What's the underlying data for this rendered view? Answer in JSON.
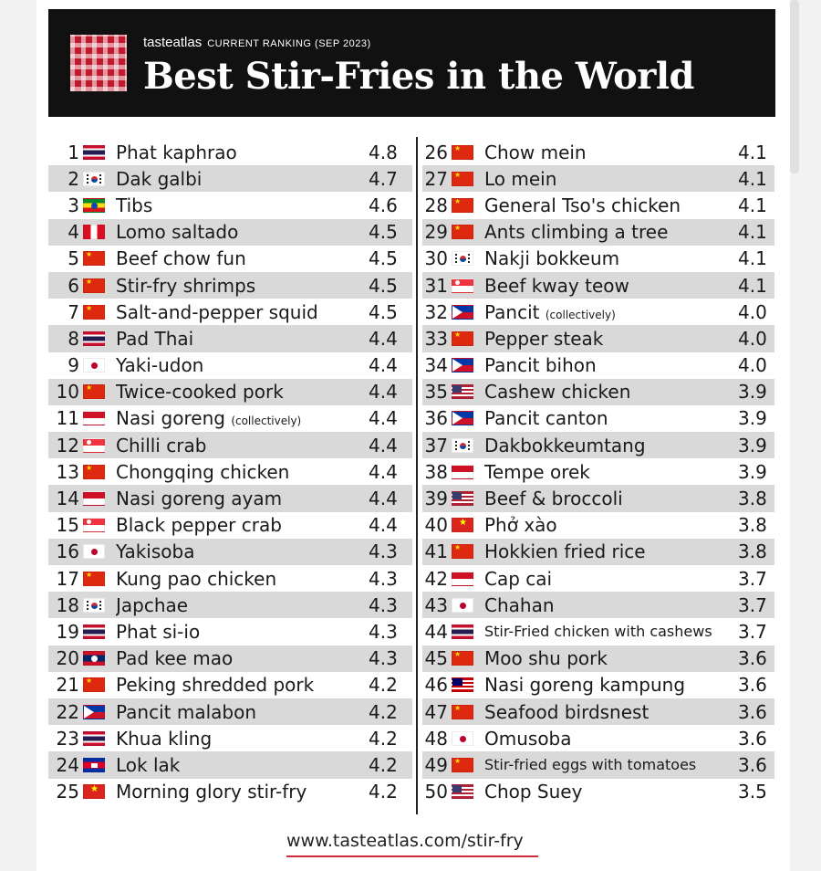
{
  "header": {
    "brand": "tasteatlas",
    "subtitle": "CURRENT RANKING (SEP 2023)",
    "title": "Best Stir-Fries in the World"
  },
  "rankings_left": [
    {
      "rank": "1",
      "flag": "thailand-flag-icon",
      "name": "Phat kaphrao",
      "score": "4.8"
    },
    {
      "rank": "2",
      "flag": "south-korea-flag-icon",
      "name": "Dak galbi",
      "score": "4.7"
    },
    {
      "rank": "3",
      "flag": "ethiopia-flag-icon",
      "name": "Tibs",
      "score": "4.6"
    },
    {
      "rank": "4",
      "flag": "peru-flag-icon",
      "name": "Lomo saltado",
      "score": "4.5"
    },
    {
      "rank": "5",
      "flag": "china-flag-icon",
      "name": "Beef chow fun",
      "score": "4.5"
    },
    {
      "rank": "6",
      "flag": "china-flag-icon",
      "name": "Stir-fry shrimps",
      "score": "4.5"
    },
    {
      "rank": "7",
      "flag": "china-flag-icon",
      "name": "Salt-and-pepper squid",
      "score": "4.5"
    },
    {
      "rank": "8",
      "flag": "thailand-flag-icon",
      "name": "Pad Thai",
      "score": "4.4"
    },
    {
      "rank": "9",
      "flag": "japan-flag-icon",
      "name": "Yaki-udon",
      "score": "4.4"
    },
    {
      "rank": "10",
      "flag": "china-flag-icon",
      "name": "Twice-cooked pork",
      "score": "4.4"
    },
    {
      "rank": "11",
      "flag": "indonesia-flag-icon",
      "name": "Nasi goreng",
      "note": "(collectively)",
      "score": "4.4"
    },
    {
      "rank": "12",
      "flag": "singapore-flag-icon",
      "name": "Chilli crab",
      "score": "4.4"
    },
    {
      "rank": "13",
      "flag": "china-flag-icon",
      "name": "Chongqing chicken",
      "score": "4.4"
    },
    {
      "rank": "14",
      "flag": "indonesia-flag-icon",
      "name": "Nasi goreng ayam",
      "score": "4.4"
    },
    {
      "rank": "15",
      "flag": "singapore-flag-icon",
      "name": "Black pepper crab",
      "score": "4.4"
    },
    {
      "rank": "16",
      "flag": "japan-flag-icon",
      "name": "Yakisoba",
      "score": "4.3"
    },
    {
      "rank": "17",
      "flag": "china-flag-icon",
      "name": "Kung pao chicken",
      "score": "4.3"
    },
    {
      "rank": "18",
      "flag": "south-korea-flag-icon",
      "name": "Japchae",
      "score": "4.3"
    },
    {
      "rank": "19",
      "flag": "thailand-flag-icon",
      "name": "Phat si-io",
      "score": "4.3"
    },
    {
      "rank": "20",
      "flag": "laos-flag-icon",
      "name": "Pad kee mao",
      "score": "4.3"
    },
    {
      "rank": "21",
      "flag": "china-flag-icon",
      "name": "Peking shredded pork",
      "score": "4.2"
    },
    {
      "rank": "22",
      "flag": "philippines-flag-icon",
      "name": "Pancit malabon",
      "score": "4.2"
    },
    {
      "rank": "23",
      "flag": "thailand-flag-icon",
      "name": "Khua kling",
      "score": "4.2"
    },
    {
      "rank": "24",
      "flag": "cambodia-flag-icon",
      "name": "Lok lak",
      "score": "4.2"
    },
    {
      "rank": "25",
      "flag": "vietnam-flag-icon",
      "name": "Morning glory stir-fry",
      "score": "4.2"
    }
  ],
  "rankings_right": [
    {
      "rank": "26",
      "flag": "china-flag-icon",
      "name": "Chow mein",
      "score": "4.1"
    },
    {
      "rank": "27",
      "flag": "china-flag-icon",
      "name": "Lo mein",
      "score": "4.1"
    },
    {
      "rank": "28",
      "flag": "china-flag-icon",
      "name": "General Tso's chicken",
      "score": "4.1"
    },
    {
      "rank": "29",
      "flag": "china-flag-icon",
      "name": "Ants climbing a tree",
      "score": "4.1"
    },
    {
      "rank": "30",
      "flag": "south-korea-flag-icon",
      "name": "Nakji bokkeum",
      "score": "4.1"
    },
    {
      "rank": "31",
      "flag": "singapore-flag-icon",
      "name": "Beef kway teow",
      "score": "4.1"
    },
    {
      "rank": "32",
      "flag": "philippines-flag-icon",
      "name": "Pancit",
      "note": "(collectively)",
      "score": "4.0"
    },
    {
      "rank": "33",
      "flag": "china-flag-icon",
      "name": "Pepper steak",
      "score": "4.0"
    },
    {
      "rank": "34",
      "flag": "philippines-flag-icon",
      "name": "Pancit bihon",
      "score": "4.0"
    },
    {
      "rank": "35",
      "flag": "usa-flag-icon",
      "name": "Cashew chicken",
      "score": "3.9"
    },
    {
      "rank": "36",
      "flag": "philippines-flag-icon",
      "name": "Pancit canton",
      "score": "3.9"
    },
    {
      "rank": "37",
      "flag": "south-korea-flag-icon",
      "name": "Dakbokkeumtang",
      "score": "3.9"
    },
    {
      "rank": "38",
      "flag": "indonesia-flag-icon",
      "name": "Tempe orek",
      "score": "3.9"
    },
    {
      "rank": "39",
      "flag": "usa-flag-icon",
      "name": "Beef & broccoli",
      "score": "3.8"
    },
    {
      "rank": "40",
      "flag": "vietnam-flag-icon",
      "name": "Phở xào",
      "score": "3.8"
    },
    {
      "rank": "41",
      "flag": "china-flag-icon",
      "name": "Hokkien fried rice",
      "score": "3.8"
    },
    {
      "rank": "42",
      "flag": "indonesia-flag-icon",
      "name": "Cap cai",
      "score": "3.7"
    },
    {
      "rank": "43",
      "flag": "japan-flag-icon",
      "name": "Chahan",
      "score": "3.7"
    },
    {
      "rank": "44",
      "flag": "thailand-flag-icon",
      "name": "Stir-Fried chicken with cashews",
      "score": "3.7",
      "small": true
    },
    {
      "rank": "45",
      "flag": "china-flag-icon",
      "name": "Moo shu pork",
      "score": "3.6"
    },
    {
      "rank": "46",
      "flag": "malaysia-flag-icon",
      "name": "Nasi goreng kampung",
      "score": "3.6"
    },
    {
      "rank": "47",
      "flag": "china-flag-icon",
      "name": "Seafood birdsnest",
      "score": "3.6"
    },
    {
      "rank": "48",
      "flag": "japan-flag-icon",
      "name": "Omusoba",
      "score": "3.6"
    },
    {
      "rank": "49",
      "flag": "china-flag-icon",
      "name": "Stir-fried eggs with tomatoes",
      "score": "3.6",
      "small": true
    },
    {
      "rank": "50",
      "flag": "usa-flag-icon",
      "name": "Chop Suey",
      "score": "3.5"
    }
  ],
  "footer": {
    "link": "www.tasteatlas.com/stir-fry"
  },
  "colors": {
    "header_bg": "#111111",
    "brand_red": "#c0182c",
    "row_alt": "#d9d9d9",
    "underline": "#d12a3a"
  }
}
